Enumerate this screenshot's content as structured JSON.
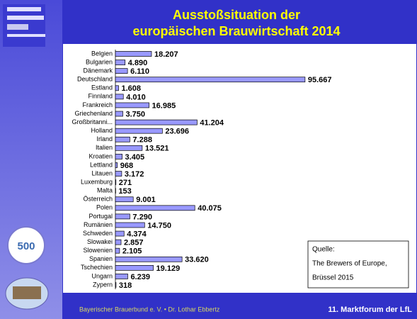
{
  "title_lines": [
    "Ausstoßsituation der",
    "europäischen Brauwirtschaft 2014"
  ],
  "badge": "500",
  "footer_left": "Bayerischer Brauerbund e. V. • Dr. Lothar Ebbertz",
  "footer_right": "11. Marktforum der LfL",
  "source_lines": [
    "Quelle:",
    "The Brewers of Europe,",
    "Brüssel  2015"
  ],
  "chart_data": {
    "type": "hbar",
    "categories": [
      "Belgien",
      "Bulgarien",
      "Dänemark",
      "Deutschland",
      "Estland",
      "Finnland",
      "Frankreich",
      "Griechenland",
      "Großbritanni...",
      "Holland",
      "Irland",
      "Italien",
      "Kroatien",
      "Lettland",
      "Litauen",
      "Luxemburg",
      "Malta",
      "Österreich",
      "Polen",
      "Portugal",
      "Rumänien",
      "Schweden",
      "Slowakei",
      "Slowenien",
      "Spanien",
      "Tschechien",
      "Ungarn",
      "Zypern"
    ],
    "values": [
      18207,
      4890,
      6110,
      95667,
      1608,
      4010,
      16985,
      3750,
      41204,
      23696,
      7288,
      13521,
      3405,
      968,
      3172,
      271,
      153,
      9001,
      40075,
      7290,
      14750,
      4374,
      2857,
      2105,
      33620,
      19129,
      6239,
      318
    ],
    "value_labels": [
      "18.207",
      "4.890",
      "6.110",
      "95.667",
      "1.608",
      "4.010",
      "16.985",
      "3.750",
      "41.204",
      "23.696",
      "7.288",
      "13.521",
      "3.405",
      "968",
      "3.172",
      "271",
      "153",
      "9.001",
      "40.075",
      "7.290",
      "14.750",
      "4.374",
      "2.857",
      "2.105",
      "33.620",
      "19.129",
      "6.239",
      "318"
    ],
    "color": "#9999ff",
    "xlim": [
      0,
      100000
    ]
  }
}
